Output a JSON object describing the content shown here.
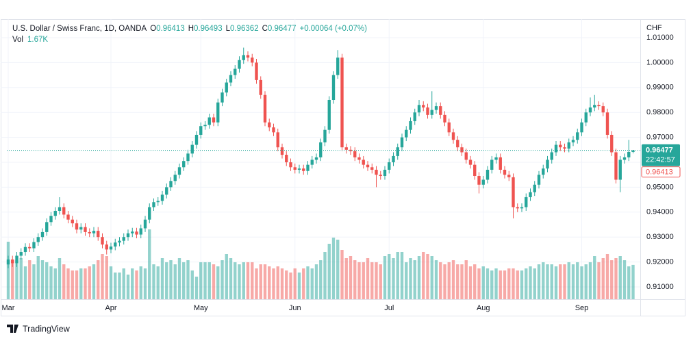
{
  "chart_data": {
    "type": "candlestick",
    "title": "U.S. Dollar / Swiss Franc, 1D, OANDA",
    "ohlc_header": [
      [
        "O",
        "0.96413"
      ],
      [
        "H",
        "0.96493"
      ],
      [
        "L",
        "0.96362"
      ],
      [
        "C",
        "0.96477"
      ]
    ],
    "change": "+0.00064 (+0.07%)",
    "volume_label": "Vol",
    "volume_value": "1.67K",
    "currency": "CHF",
    "last_price_label": "0.96477",
    "countdown": "22:42:57",
    "prev_close_label": "0.96413",
    "brand": "TradingView",
    "up_color": "#26a69a",
    "down_color": "#ef5350",
    "grid": true,
    "ylim": [
      0.90505,
      1.01742
    ],
    "yticks": [
      {
        "value": 0.91,
        "label": "0.91000"
      },
      {
        "value": 0.92,
        "label": "0.92000"
      },
      {
        "value": 0.93,
        "label": "0.93000"
      },
      {
        "value": 0.94,
        "label": "0.94000"
      },
      {
        "value": 0.95,
        "label": "0.95000"
      },
      {
        "value": 0.96,
        "label": "0.96000"
      },
      {
        "value": 0.97,
        "label": "0.97000"
      },
      {
        "value": 0.98,
        "label": "0.98000"
      },
      {
        "value": 0.99,
        "label": "0.99000"
      },
      {
        "value": 1.0,
        "label": "1.00000"
      },
      {
        "value": 1.01,
        "label": "1.01000"
      }
    ],
    "xlim": [
      -0.32,
      147.68
    ],
    "xticks": [
      {
        "value": 0,
        "label": "Mar"
      },
      {
        "value": 24,
        "label": "Apr"
      },
      {
        "value": 45,
        "label": "May"
      },
      {
        "value": 67,
        "label": "Jun"
      },
      {
        "value": 89,
        "label": "Jul"
      },
      {
        "value": 111,
        "label": "Aug"
      },
      {
        "value": 134,
        "label": "Sep"
      }
    ],
    "open": [
      0.919,
      0.921,
      0.9195,
      0.9225,
      0.924,
      0.926,
      0.9255,
      0.928,
      0.93,
      0.932,
      0.936,
      0.9385,
      0.9405,
      0.942,
      0.939,
      0.937,
      0.9355,
      0.933,
      0.934,
      0.932,
      0.9315,
      0.9325,
      0.93,
      0.927,
      0.925,
      0.9262,
      0.9278,
      0.9285,
      0.93,
      0.9315,
      0.9322,
      0.931,
      0.9335,
      0.937,
      0.942,
      0.944,
      0.9445,
      0.947,
      0.95,
      0.9525,
      0.955,
      0.958,
      0.9605,
      0.9635,
      0.967,
      0.971,
      0.9745,
      0.975,
      0.978,
      0.976,
      0.984,
      0.988,
      0.992,
      0.995,
      0.9975,
      1.001,
      1.003,
      1.002,
      1.0,
      0.993,
      0.987,
      0.976,
      0.974,
      0.972,
      0.966,
      0.963,
      0.96,
      0.958,
      0.957,
      0.9575,
      0.9565,
      0.959,
      0.961,
      0.962,
      0.968,
      0.973,
      0.985,
      0.995,
      1.002,
      0.966,
      0.965,
      0.9645,
      0.962,
      0.961,
      0.959,
      0.958,
      0.957,
      0.955,
      0.9545,
      0.957,
      0.96,
      0.9625,
      0.966,
      0.97,
      0.973,
      0.9765,
      0.98,
      0.983,
      0.982,
      0.979,
      0.981,
      0.9825,
      0.979,
      0.976,
      0.972,
      0.969,
      0.966,
      0.964,
      0.961,
      0.959,
      0.9545,
      0.951,
      0.953,
      0.957,
      0.961,
      0.962,
      0.957,
      0.955,
      0.954,
      0.942,
      0.9415,
      0.942,
      0.946,
      0.948,
      0.951,
      0.955,
      0.9575,
      0.961,
      0.964,
      0.967,
      0.966,
      0.9655,
      0.968,
      0.969,
      0.972,
      0.976,
      0.98,
      0.982,
      0.983,
      0.9825,
      0.98,
      0.971,
      0.964,
      0.953,
      0.961,
      0.962,
      0.96413
    ],
    "high": [
      0.9225,
      0.9225,
      0.924,
      0.9255,
      0.9275,
      0.9275,
      0.9295,
      0.9315,
      0.9335,
      0.9375,
      0.94,
      0.942,
      0.946,
      0.9435,
      0.9405,
      0.9385,
      0.937,
      0.9355,
      0.9355,
      0.9335,
      0.934,
      0.934,
      0.9315,
      0.9285,
      0.9277,
      0.9293,
      0.93,
      0.9315,
      0.933,
      0.9337,
      0.9337,
      0.935,
      0.9385,
      0.9435,
      0.9455,
      0.946,
      0.9485,
      0.9515,
      0.954,
      0.9565,
      0.9595,
      0.962,
      0.965,
      0.9685,
      0.9725,
      0.976,
      0.9765,
      0.9795,
      0.9795,
      0.9855,
      0.9895,
      0.9935,
      0.9965,
      0.999,
      1.0025,
      1.006,
      1.0045,
      1.0035,
      1.0015,
      0.9945,
      0.9885,
      0.9775,
      0.9755,
      0.9735,
      0.9675,
      0.9645,
      0.9615,
      0.9595,
      0.959,
      0.959,
      0.9605,
      0.9625,
      0.9635,
      0.9695,
      0.9745,
      0.9865,
      0.9965,
      1.005,
      1.0035,
      0.9675,
      0.9665,
      0.966,
      0.9635,
      0.9625,
      0.9605,
      0.9595,
      0.9585,
      0.9565,
      0.9585,
      0.9615,
      0.964,
      0.9675,
      0.9715,
      0.9745,
      0.978,
      0.9815,
      0.985,
      0.9845,
      0.9835,
      0.9885,
      0.984,
      0.984,
      0.9805,
      0.9775,
      0.9735,
      0.9705,
      0.9675,
      0.9655,
      0.9625,
      0.9605,
      0.956,
      0.9545,
      0.9585,
      0.9625,
      0.9635,
      0.9635,
      0.9585,
      0.9565,
      0.9555,
      0.9435,
      0.9435,
      0.9475,
      0.9495,
      0.9525,
      0.9565,
      0.959,
      0.9625,
      0.9655,
      0.9685,
      0.9685,
      0.9675,
      0.9695,
      0.9705,
      0.9735,
      0.9775,
      0.9815,
      0.986,
      0.987,
      0.9845,
      0.984,
      0.9815,
      0.9725,
      0.9655,
      0.9625,
      0.9635,
      0.969,
      0.96493
    ],
    "low": [
      0.9175,
      0.918,
      0.918,
      0.921,
      0.9225,
      0.924,
      0.924,
      0.9265,
      0.9285,
      0.9305,
      0.9345,
      0.937,
      0.939,
      0.9375,
      0.9355,
      0.934,
      0.9315,
      0.9315,
      0.9305,
      0.93,
      0.93,
      0.9285,
      0.9255,
      0.923,
      0.9235,
      0.9247,
      0.9263,
      0.927,
      0.9285,
      0.93,
      0.9295,
      0.9295,
      0.932,
      0.9355,
      0.9405,
      0.9425,
      0.943,
      0.9455,
      0.9485,
      0.951,
      0.9535,
      0.9565,
      0.959,
      0.962,
      0.9655,
      0.9695,
      0.973,
      0.9735,
      0.9745,
      0.9745,
      0.9825,
      0.9865,
      0.9905,
      0.9935,
      0.996,
      0.9995,
      1.0005,
      0.9985,
      0.9915,
      0.9855,
      0.9745,
      0.9725,
      0.9705,
      0.9645,
      0.9615,
      0.9585,
      0.9565,
      0.9555,
      0.9555,
      0.955,
      0.955,
      0.9575,
      0.9595,
      0.9605,
      0.9665,
      0.9715,
      0.9835,
      0.9935,
      0.9645,
      0.9635,
      0.963,
      0.9605,
      0.9595,
      0.9575,
      0.9565,
      0.9555,
      0.95,
      0.953,
      0.953,
      0.9555,
      0.9585,
      0.961,
      0.9645,
      0.9685,
      0.9715,
      0.975,
      0.9785,
      0.9805,
      0.9775,
      0.9775,
      0.9795,
      0.9775,
      0.9745,
      0.9705,
      0.9675,
      0.9645,
      0.9625,
      0.9595,
      0.9575,
      0.953,
      0.9475,
      0.9495,
      0.9515,
      0.9555,
      0.9595,
      0.9555,
      0.9535,
      0.9525,
      0.9375,
      0.94,
      0.94,
      0.9405,
      0.9445,
      0.9465,
      0.9495,
      0.9535,
      0.956,
      0.9595,
      0.9625,
      0.9645,
      0.964,
      0.964,
      0.9665,
      0.9675,
      0.9705,
      0.9745,
      0.9785,
      0.9805,
      0.981,
      0.9785,
      0.9695,
      0.9625,
      0.9515,
      0.948,
      0.9595,
      0.9605,
      0.96362
    ],
    "close": [
      0.921,
      0.9195,
      0.9225,
      0.924,
      0.926,
      0.9255,
      0.928,
      0.93,
      0.932,
      0.936,
      0.9385,
      0.9405,
      0.942,
      0.939,
      0.937,
      0.9355,
      0.933,
      0.934,
      0.932,
      0.9315,
      0.9325,
      0.93,
      0.927,
      0.925,
      0.9262,
      0.9278,
      0.9285,
      0.93,
      0.9315,
      0.9322,
      0.931,
      0.9335,
      0.937,
      0.942,
      0.944,
      0.9445,
      0.947,
      0.95,
      0.9525,
      0.955,
      0.958,
      0.9605,
      0.9635,
      0.967,
      0.971,
      0.9745,
      0.975,
      0.978,
      0.976,
      0.984,
      0.988,
      0.992,
      0.995,
      0.9975,
      1.001,
      1.003,
      1.002,
      1.0,
      0.993,
      0.987,
      0.976,
      0.974,
      0.972,
      0.966,
      0.963,
      0.96,
      0.958,
      0.957,
      0.9575,
      0.9565,
      0.959,
      0.961,
      0.962,
      0.968,
      0.973,
      0.985,
      0.995,
      1.002,
      0.966,
      0.965,
      0.9645,
      0.962,
      0.961,
      0.959,
      0.958,
      0.957,
      0.955,
      0.9545,
      0.957,
      0.96,
      0.9625,
      0.966,
      0.97,
      0.973,
      0.9765,
      0.98,
      0.983,
      0.982,
      0.979,
      0.981,
      0.9825,
      0.979,
      0.976,
      0.972,
      0.969,
      0.966,
      0.964,
      0.961,
      0.959,
      0.9545,
      0.951,
      0.953,
      0.957,
      0.961,
      0.962,
      0.957,
      0.955,
      0.954,
      0.942,
      0.9415,
      0.942,
      0.946,
      0.948,
      0.951,
      0.955,
      0.9575,
      0.961,
      0.964,
      0.967,
      0.966,
      0.9655,
      0.968,
      0.969,
      0.972,
      0.976,
      0.98,
      0.982,
      0.983,
      0.9825,
      0.98,
      0.971,
      0.964,
      0.953,
      0.961,
      0.962,
      0.96413,
      0.96477
    ],
    "volume": [
      2.8,
      1.8,
      1.9,
      2.0,
      1.6,
      1.9,
      1.7,
      2.1,
      1.9,
      1.8,
      1.6,
      1.5,
      2.0,
      1.7,
      1.5,
      1.4,
      1.4,
      1.5,
      1.5,
      1.6,
      1.7,
      1.9,
      2.2,
      2.1,
      1.6,
      1.3,
      1.3,
      1.5,
      1.2,
      1.5,
      1.4,
      1.6,
      1.5,
      3.4,
      1.7,
      1.6,
      2.0,
      1.8,
      1.9,
      1.7,
      2.0,
      1.8,
      1.9,
      1.4,
      1.1,
      1.8,
      1.8,
      1.8,
      1.7,
      1.6,
      1.9,
      2.2,
      2.0,
      1.8,
      1.7,
      1.8,
      1.8,
      1.8,
      1.5,
      1.7,
      1.7,
      1.6,
      1.5,
      1.6,
      1.5,
      1.4,
      1.3,
      1.5,
      1.3,
      1.5,
      1.6,
      1.5,
      1.7,
      1.9,
      2.3,
      2.7,
      3.0,
      2.9,
      2.4,
      2.0,
      2.1,
      1.9,
      1.8,
      1.8,
      2.0,
      1.8,
      1.8,
      1.7,
      2.1,
      2.2,
      2.0,
      2.3,
      2.3,
      1.8,
      2.0,
      1.9,
      2.1,
      2.3,
      2.2,
      2.1,
      1.9,
      1.8,
      1.7,
      1.8,
      1.9,
      1.7,
      1.7,
      1.9,
      1.6,
      1.7,
      1.5,
      1.6,
      1.5,
      1.4,
      1.5,
      1.4,
      1.4,
      1.5,
      1.5,
      1.4,
      1.4,
      1.5,
      1.6,
      1.5,
      1.7,
      1.8,
      1.7,
      1.7,
      1.6,
      1.7,
      1.7,
      1.8,
      1.7,
      1.8,
      1.6,
      1.7,
      1.8,
      2.1,
      1.8,
      2.0,
      2.2,
      1.9,
      2.0,
      2.1,
      1.9,
      1.6,
      1.67
    ]
  }
}
